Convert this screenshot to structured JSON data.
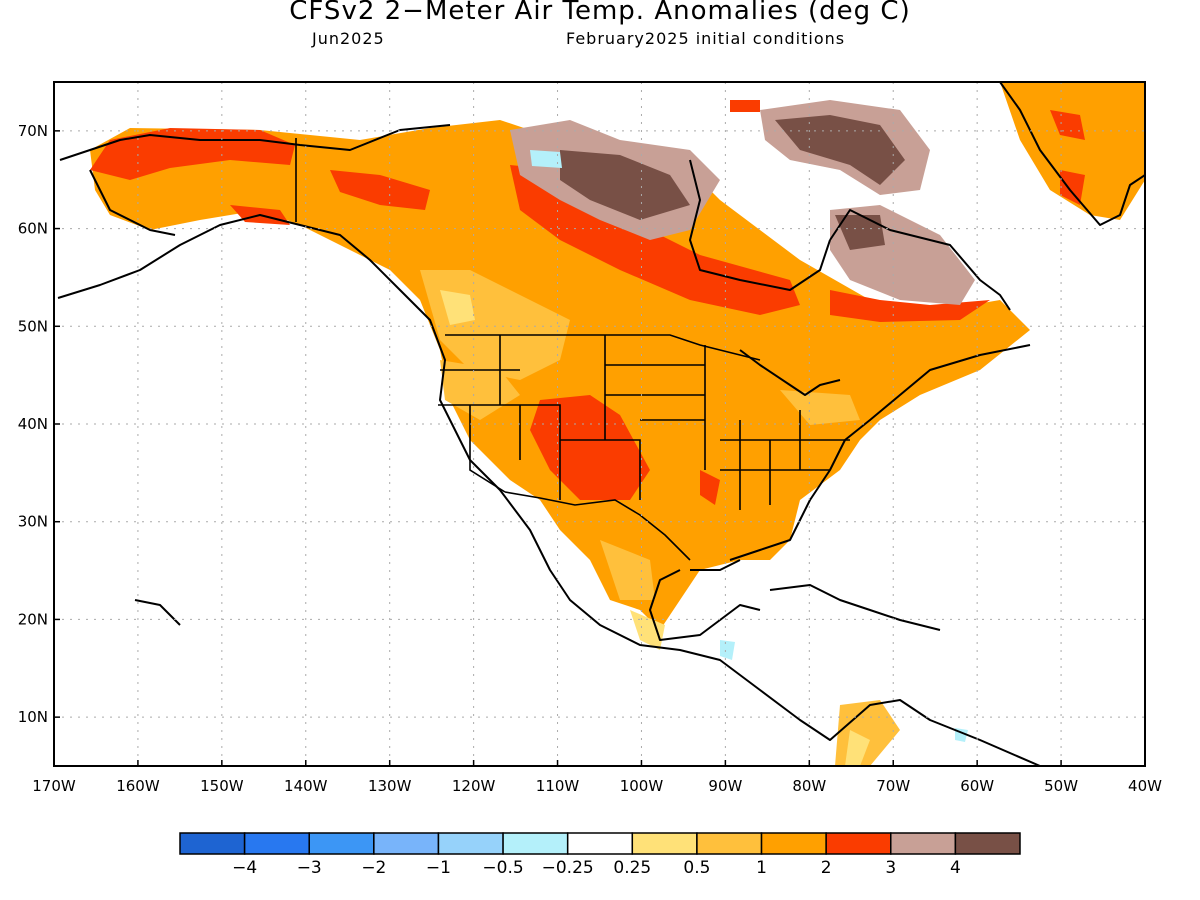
{
  "header": {
    "title": "CFSv2 2−Meter Air Temp. Anomalies (deg C)",
    "valid_month": "Jun2025",
    "initial_conditions": "February2025 initial conditions"
  },
  "axes": {
    "lat_labels": [
      "70N",
      "60N",
      "50N",
      "40N",
      "30N",
      "20N",
      "10N"
    ],
    "lon_labels": [
      "170W",
      "160W",
      "150W",
      "140W",
      "130W",
      "120W",
      "110W",
      "100W",
      "90W",
      "80W",
      "70W",
      "60W",
      "50W",
      "40W"
    ],
    "lat_range": [
      5,
      75
    ],
    "lon_range": [
      -170,
      -40
    ],
    "grid": "dotted"
  },
  "colorbar": {
    "labels": [
      "−4",
      "−3",
      "−2",
      "−1",
      "−0.5",
      "−0.25",
      "0.25",
      "0.5",
      "1",
      "2",
      "3",
      "4"
    ],
    "colors": [
      "#1e64d2",
      "#2878f0",
      "#3c96f5",
      "#78b4fa",
      "#96d2fa",
      "#b4f0fa",
      "#ffffff",
      "#ffe178",
      "#ffc03c",
      "#ffa000",
      "#fa3c00",
      "#c8a096",
      "#785046"
    ]
  },
  "legend_text": {
    "note": ""
  }
}
